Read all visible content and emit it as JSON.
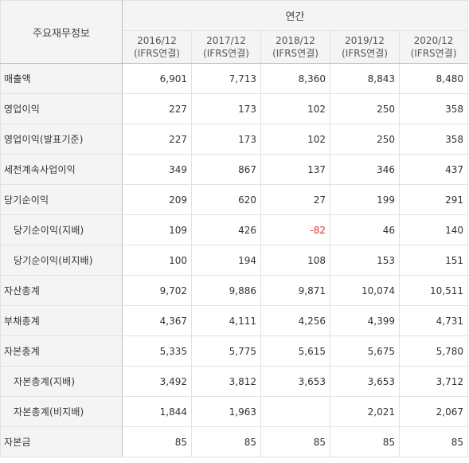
{
  "header": {
    "corner_label": "주요재무정보",
    "group_label": "연간",
    "periods": [
      {
        "year": "2016/12",
        "basis": "(IFRS연결)"
      },
      {
        "year": "2017/12",
        "basis": "(IFRS연결)"
      },
      {
        "year": "2018/12",
        "basis": "(IFRS연결)"
      },
      {
        "year": "2019/12",
        "basis": "(IFRS연결)"
      },
      {
        "year": "2020/12",
        "basis": "(IFRS연결)"
      }
    ]
  },
  "rows": [
    {
      "label": "매출액",
      "values": [
        "6,901",
        "7,713",
        "8,360",
        "8,843",
        "8,480"
      ]
    },
    {
      "label": "영업이익",
      "values": [
        "227",
        "173",
        "102",
        "250",
        "358"
      ]
    },
    {
      "label": "영업이익(발표기준)",
      "values": [
        "227",
        "173",
        "102",
        "250",
        "358"
      ]
    },
    {
      "label": "세전계속사업이익",
      "values": [
        "349",
        "867",
        "137",
        "346",
        "437"
      ]
    },
    {
      "label": "당기순이익",
      "values": [
        "209",
        "620",
        "27",
        "199",
        "291"
      ]
    },
    {
      "label": "당기순이익(지배)",
      "values": [
        "109",
        "426",
        "-82",
        "46",
        "140"
      ]
    },
    {
      "label": "당기순이익(비지배)",
      "values": [
        "100",
        "194",
        "108",
        "153",
        "151"
      ]
    },
    {
      "label": "자산총계",
      "values": [
        "9,702",
        "9,886",
        "9,871",
        "10,074",
        "10,511"
      ]
    },
    {
      "label": "부채총계",
      "values": [
        "4,367",
        "4,111",
        "4,256",
        "4,399",
        "4,731"
      ]
    },
    {
      "label": "자본총계",
      "values": [
        "5,335",
        "5,775",
        "5,615",
        "5,675",
        "5,780"
      ]
    },
    {
      "label": "자본총계(지배)",
      "values": [
        "3,492",
        "3,812",
        "3,653",
        "3,653",
        "3,712"
      ]
    },
    {
      "label": "자본총계(비지배)",
      "values": [
        "1,844",
        "1,963",
        "",
        "2,021",
        "2,067"
      ]
    },
    {
      "label": "자본금",
      "values": [
        "85",
        "85",
        "85",
        "85",
        "85"
      ]
    }
  ],
  "colors": {
    "header_bg": "#f4f4f4",
    "negative": "#e23030",
    "border": "#e2e2e2",
    "separator": "#bdbdbd"
  }
}
